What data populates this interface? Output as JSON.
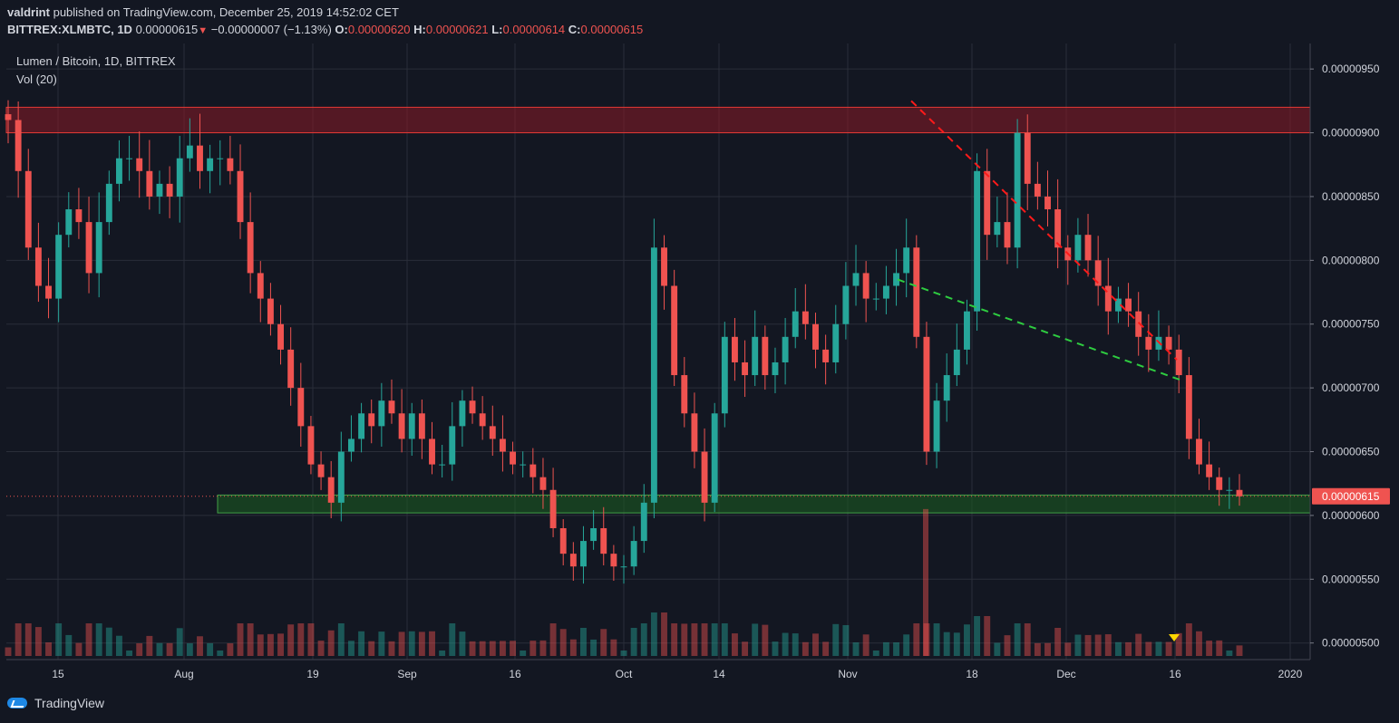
{
  "header": {
    "author": "valdrint",
    "published_text": "published on TradingView.com, December 25, 2019 14:52:02 CET",
    "symbol": "BITTREX:XLMBTC, 1D",
    "last": "0.00000615",
    "change": "−0.00000007 (−1.13%)",
    "o_label": "O:",
    "o_value": "0.00000620",
    "h_label": "H:",
    "h_value": "0.00000621",
    "l_label": "L:",
    "l_value": "0.00000614",
    "c_label": "C:",
    "c_value": "0.00000615"
  },
  "footer": {
    "brand": "TradingView"
  },
  "colors": {
    "background": "#131722",
    "grid": "#2a2e39",
    "up": "#26a69a",
    "down": "#ef5350",
    "resistance_zone": "#8b1a26",
    "support_zone": "#1b5e20",
    "upper_trendline": "#ff1a1a",
    "lower_trendline": "#2ecc40",
    "last_price_badge": "#ef5350",
    "marker": "#ffd600"
  },
  "chart_data": {
    "type": "candlestick",
    "title": "Lumen / Bitcoin, 1D, BITTREX",
    "indicator": "Vol (20)",
    "ylim": [
      4.87e-06,
      9.7e-06
    ],
    "y_ticks": [
      "0.00000950",
      "0.00000900",
      "0.00000850",
      "0.00000800",
      "0.00000750",
      "0.00000700",
      "0.00000650",
      "0.00000600",
      "0.00000550",
      "0.00000500"
    ],
    "x_ticks": [
      "15",
      "Aug",
      "19",
      "Sep",
      "16",
      "Oct",
      "14",
      "Nov",
      "18",
      "Dec",
      "16",
      "2020"
    ],
    "last_price_label": "0.00000615",
    "zones": [
      {
        "name": "resistance",
        "from": 9e-06,
        "to": 9.2e-06
      },
      {
        "name": "support",
        "from": 6.02e-06,
        "to": 6.16e-06
      }
    ],
    "trendlines": [
      {
        "style": "dashed",
        "color": "red",
        "from": [
          "Nov 12",
          9.25e-06
        ],
        "to": [
          "Dec 16",
          7.22e-06
        ]
      },
      {
        "style": "dashed",
        "color": "green",
        "from": [
          "Nov 7",
          7.85e-06
        ],
        "to": [
          "Dec 16",
          7.06e-06
        ]
      }
    ],
    "candle_closes": [
      9.1e-06,
      8.7e-06,
      8.1e-06,
      7.8e-06,
      7.7e-06,
      8.2e-06,
      8.4e-06,
      8.3e-06,
      7.9e-06,
      8.3e-06,
      8.6e-06,
      8.8e-06,
      8.8e-06,
      8.7e-06,
      8.5e-06,
      8.6e-06,
      8.5e-06,
      8.8e-06,
      8.9e-06,
      8.7e-06,
      8.8e-06,
      8.8e-06,
      8.7e-06,
      8.3e-06,
      7.9e-06,
      7.7e-06,
      7.5e-06,
      7.3e-06,
      7e-06,
      6.7e-06,
      6.4e-06,
      6.3e-06,
      6.1e-06,
      6.5e-06,
      6.6e-06,
      6.8e-06,
      6.7e-06,
      6.9e-06,
      6.8e-06,
      6.6e-06,
      6.8e-06,
      6.6e-06,
      6.4e-06,
      6.4e-06,
      6.7e-06,
      6.9e-06,
      6.8e-06,
      6.7e-06,
      6.6e-06,
      6.5e-06,
      6.4e-06,
      6.4e-06,
      6.3e-06,
      6.2e-06,
      5.9e-06,
      5.7e-06,
      5.6e-06,
      5.8e-06,
      5.9e-06,
      5.7e-06,
      5.6e-06,
      5.6e-06,
      5.8e-06,
      6.1e-06,
      8.1e-06,
      7.8e-06,
      7.1e-06,
      6.8e-06,
      6.5e-06,
      6.1e-06,
      6.8e-06,
      7.4e-06,
      7.2e-06,
      7.1e-06,
      7.4e-06,
      7.1e-06,
      7.2e-06,
      7.4e-06,
      7.6e-06,
      7.5e-06,
      7.3e-06,
      7.2e-06,
      7.5e-06,
      7.8e-06,
      7.9e-06,
      7.7e-06,
      7.7e-06,
      7.8e-06,
      7.9e-06,
      8.1e-06,
      7.4e-06,
      6.5e-06,
      6.9e-06,
      7.1e-06,
      7.3e-06,
      7.6e-06,
      8.7e-06,
      8.2e-06,
      8.3e-06,
      8.1e-06,
      9e-06,
      8.6e-06,
      8.5e-06,
      8.4e-06,
      8.1e-06,
      8e-06,
      8.2e-06,
      8e-06,
      7.8e-06,
      7.6e-06,
      7.7e-06,
      7.6e-06,
      7.4e-06,
      7.3e-06,
      7.4e-06,
      7.3e-06,
      7.1e-06,
      6.6e-06,
      6.4e-06,
      6.3e-06,
      6.2e-06,
      6.2e-06,
      6.15e-06
    ],
    "volume_spike": {
      "date": "Nov 12",
      "note": "largest volume bar"
    }
  }
}
